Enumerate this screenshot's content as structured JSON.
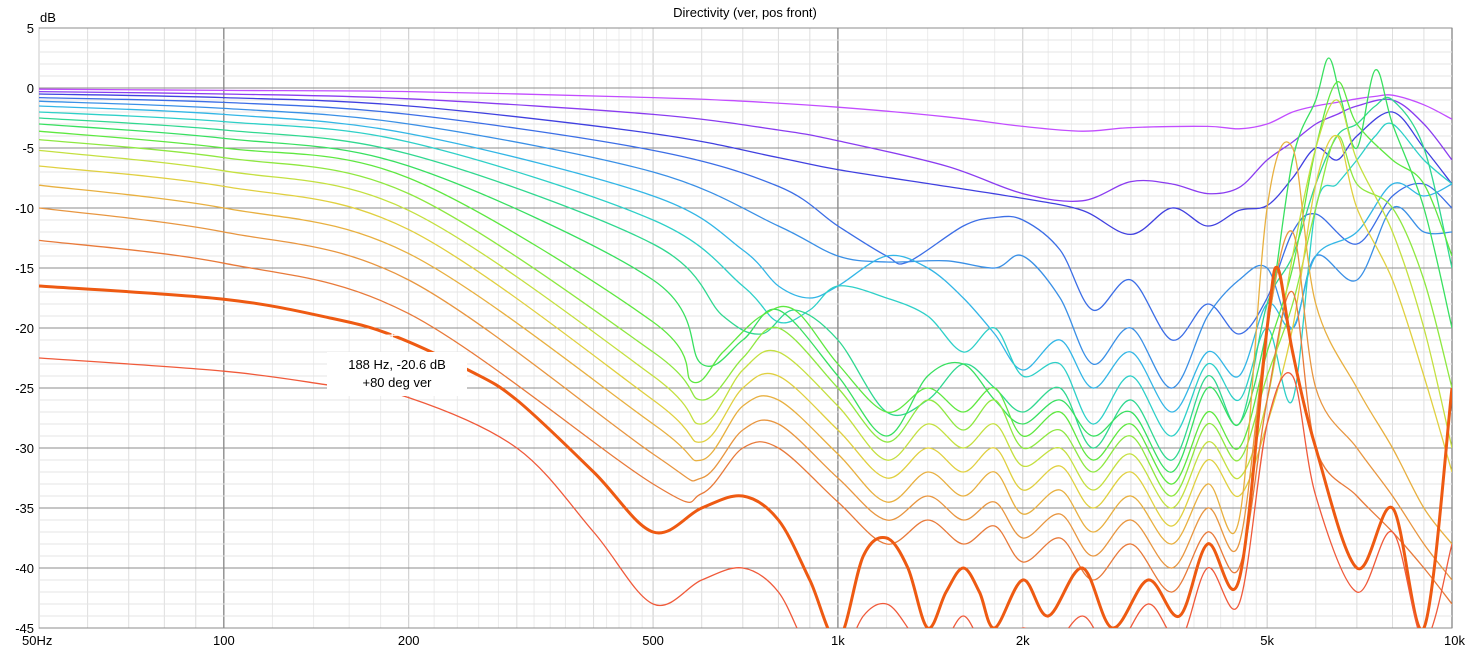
{
  "chart_data": {
    "type": "line",
    "title": "Directivity (ver, pos front)",
    "ylabel": "dB",
    "xlabel": "",
    "x_scale": "log",
    "xlim": [
      50,
      10000
    ],
    "ylim": [
      -45,
      5
    ],
    "x_ticks": [
      {
        "value": 50,
        "label": "50Hz"
      },
      {
        "value": 100,
        "label": "100"
      },
      {
        "value": 200,
        "label": "200"
      },
      {
        "value": 500,
        "label": "500"
      },
      {
        "value": 1000,
        "label": "1k"
      },
      {
        "value": 2000,
        "label": "2k"
      },
      {
        "value": 5000,
        "label": "5k"
      },
      {
        "value": 10000,
        "label": "10k"
      }
    ],
    "y_ticks": [
      {
        "value": 5,
        "label": "5"
      },
      {
        "value": 0,
        "label": "0"
      },
      {
        "value": -5,
        "label": "-5"
      },
      {
        "value": -10,
        "label": "-10"
      },
      {
        "value": -15,
        "label": "-15"
      },
      {
        "value": -20,
        "label": "-20"
      },
      {
        "value": -25,
        "label": "-25"
      },
      {
        "value": -30,
        "label": "-30"
      },
      {
        "value": -35,
        "label": "-35"
      },
      {
        "value": -40,
        "label": "-40"
      },
      {
        "value": -45,
        "label": "-45"
      }
    ],
    "grid": true,
    "legend": "none",
    "cursor": {
      "x": 188,
      "y": -20.6,
      "line1": "188 Hz, -20.6 dB",
      "line2": "+80 deg ver"
    },
    "series": [
      {
        "color": "#c24dff",
        "width": 1.3,
        "x": [
          50,
          100,
          200,
          500,
          700,
          1000,
          1500,
          2000,
          2500,
          3000,
          4000,
          4500,
          5000,
          5500,
          6000,
          6500,
          7000,
          7500,
          8000,
          9000,
          10000
        ],
        "y": [
          -0.1,
          -0.2,
          -0.3,
          -0.8,
          -1.1,
          -1.6,
          -2.4,
          -3.2,
          -3.6,
          -3.3,
          -3.2,
          -3.4,
          -3.0,
          -2.0,
          -1.5,
          -1.2,
          -0.9,
          -0.7,
          -0.6,
          -1.4,
          -2.6
        ]
      },
      {
        "color": "#8a3cf0",
        "width": 1.3,
        "x": [
          50,
          100,
          200,
          500,
          800,
          1000,
          1500,
          2000,
          2500,
          3000,
          3500,
          4000,
          4500,
          5000,
          5500,
          6000,
          6500,
          7000,
          8000,
          9000,
          10000
        ],
        "y": [
          -0.3,
          -0.5,
          -0.9,
          -2.2,
          -3.5,
          -4.4,
          -6.5,
          -8.8,
          -9.4,
          -7.8,
          -8.0,
          -8.8,
          -8.3,
          -6.0,
          -4.5,
          -3.0,
          -2.2,
          -1.5,
          -1.0,
          -3.0,
          -6.0
        ]
      },
      {
        "color": "#4040e0",
        "width": 1.3,
        "x": [
          50,
          100,
          200,
          500,
          800,
          1000,
          1500,
          2000,
          2500,
          3000,
          3500,
          4000,
          4500,
          5000,
          5500,
          6000,
          6500,
          7000,
          8000,
          9000,
          10000
        ],
        "y": [
          -0.5,
          -0.8,
          -1.5,
          -3.8,
          -5.8,
          -6.8,
          -8.2,
          -9.2,
          -10.2,
          -12.2,
          -10.0,
          -11.5,
          -10.2,
          -9.8,
          -7.5,
          -5.0,
          -6.0,
          -4.0,
          -2.0,
          -5.0,
          -8.0
        ]
      },
      {
        "color": "#3c6ee6",
        "width": 1.3,
        "x": [
          50,
          100,
          200,
          500,
          800,
          1000,
          1200,
          1300,
          1600,
          1800,
          2000,
          2300,
          2600,
          3000,
          3500,
          4000,
          4500,
          5000,
          5500,
          6000,
          7000,
          8000,
          9000,
          10000
        ],
        "y": [
          -0.8,
          -1.2,
          -2.2,
          -5.2,
          -8.2,
          -11.5,
          -14.0,
          -14.5,
          -11.5,
          -10.8,
          -11.0,
          -13.5,
          -18.5,
          -16.0,
          -21.0,
          -18.0,
          -20.5,
          -17.5,
          -12.0,
          -10.5,
          -13.0,
          -9.0,
          -8.0,
          -10.0
        ]
      },
      {
        "color": "#3a90e6",
        "width": 1.3,
        "x": [
          50,
          100,
          200,
          500,
          800,
          1000,
          1200,
          1500,
          1800,
          2000,
          2300,
          2600,
          3000,
          3500,
          4000,
          4500,
          5000,
          5500,
          6000,
          7000,
          8000,
          9000,
          10000
        ],
        "y": [
          -1.1,
          -1.7,
          -3.0,
          -7.0,
          -11.5,
          -14.0,
          -14.5,
          -14.4,
          -15.0,
          -14.0,
          -17.5,
          -23.0,
          -20.0,
          -25.0,
          -19.0,
          -16.0,
          -15.0,
          -20.0,
          -14.0,
          -16.0,
          -10.0,
          -12.0,
          -12.0
        ]
      },
      {
        "color": "#33b6e6",
        "width": 1.3,
        "x": [
          50,
          100,
          200,
          500,
          700,
          800,
          900,
          1000,
          1200,
          1400,
          1600,
          1800,
          2000,
          2300,
          2600,
          3000,
          3500,
          4000,
          4500,
          5000,
          5500,
          6000,
          7000,
          8000,
          9000,
          10000
        ],
        "y": [
          -1.5,
          -2.2,
          -3.8,
          -9.0,
          -13.5,
          -16.5,
          -17.5,
          -16.5,
          -14.0,
          -15.0,
          -17.5,
          -20.5,
          -23.5,
          -21.0,
          -25.0,
          -22.0,
          -27.0,
          -22.0,
          -24.0,
          -18.0,
          -20.0,
          -14.0,
          -12.0,
          -8.0,
          -9.0,
          -8.0
        ]
      },
      {
        "color": "#2ed0c8",
        "width": 1.3,
        "x": [
          50,
          100,
          200,
          500,
          700,
          800,
          900,
          1000,
          1200,
          1400,
          1600,
          1800,
          2000,
          2300,
          2600,
          3000,
          3500,
          4000,
          4500,
          5000,
          5500,
          6000,
          6500,
          7000,
          7500,
          8000,
          9000,
          10000
        ],
        "y": [
          -2.0,
          -2.8,
          -4.5,
          -11.0,
          -16.5,
          -19.5,
          -18.5,
          -16.5,
          -17.5,
          -19.0,
          -22.0,
          -20.0,
          -24.0,
          -23.0,
          -28.0,
          -24.0,
          -29.0,
          -23.0,
          -26.0,
          -20.0,
          -26.0,
          -10.0,
          -8.0,
          -6.0,
          -4.0,
          -3.0,
          -6.0,
          -8.0
        ]
      },
      {
        "color": "#30d890",
        "width": 1.3,
        "x": [
          50,
          100,
          200,
          500,
          650,
          750,
          850,
          1000,
          1200,
          1400,
          1600,
          1800,
          2000,
          2300,
          2600,
          3000,
          3500,
          4000,
          4500,
          5000,
          5500,
          6000,
          6500,
          7000,
          7500,
          8000,
          9000,
          10000
        ],
        "y": [
          -2.5,
          -3.5,
          -5.5,
          -13.0,
          -19.0,
          -20.5,
          -18.5,
          -21.0,
          -27.0,
          -26.0,
          -23.0,
          -25.0,
          -27.0,
          -25.0,
          -30.0,
          -26.0,
          -31.0,
          -24.0,
          -28.0,
          -18.0,
          -14.0,
          -8.0,
          -4.0,
          -3.0,
          -1.5,
          -1.0,
          -5.0,
          -15.0
        ]
      },
      {
        "color": "#38e060",
        "width": 1.3,
        "x": [
          50,
          100,
          200,
          500,
          600,
          700,
          800,
          1000,
          1200,
          1400,
          1600,
          1800,
          2000,
          2300,
          2600,
          3000,
          3500,
          4000,
          4500,
          5000,
          5500,
          6000,
          6300,
          6600,
          7000,
          7500,
          8000,
          9000,
          10000
        ],
        "y": [
          -3.0,
          -4.2,
          -6.5,
          -16.0,
          -23.0,
          -21.0,
          -18.5,
          -24.0,
          -29.0,
          -24.0,
          -23.0,
          -26.0,
          -28.0,
          -26.0,
          -29.0,
          -27.0,
          -32.0,
          -25.0,
          -28.0,
          -20.0,
          -6.0,
          -1.0,
          2.5,
          -1.0,
          -5.0,
          1.5,
          -3.0,
          -10.0,
          -20.0
        ]
      },
      {
        "color": "#5ee840",
        "width": 1.3,
        "x": [
          50,
          100,
          200,
          500,
          580,
          650,
          750,
          850,
          1000,
          1200,
          1400,
          1600,
          1800,
          2000,
          2300,
          2600,
          3000,
          3500,
          4000,
          4500,
          5000,
          5500,
          6000,
          6500,
          7000,
          8000,
          9000,
          10000
        ],
        "y": [
          -3.6,
          -5.0,
          -7.5,
          -19.5,
          -24.5,
          -22.0,
          -19.0,
          -18.5,
          -23.0,
          -27.0,
          -25.0,
          -27.0,
          -25.0,
          -29.0,
          -27.0,
          -31.0,
          -28.0,
          -33.0,
          -27.0,
          -30.0,
          -22.0,
          -15.0,
          -5.0,
          0.5,
          -3.0,
          -6.0,
          -8.0,
          -14.0
        ]
      },
      {
        "color": "#8ee840",
        "width": 1.3,
        "x": [
          50,
          100,
          200,
          500,
          600,
          700,
          800,
          1000,
          1200,
          1400,
          1600,
          1800,
          2000,
          2300,
          2600,
          3000,
          3500,
          4000,
          4500,
          5000,
          5500,
          6000,
          6500,
          7000,
          8000,
          9000,
          10000
        ],
        "y": [
          -4.3,
          -5.8,
          -8.8,
          -22.0,
          -26.0,
          -22.5,
          -20.0,
          -25.0,
          -29.5,
          -26.0,
          -28.5,
          -26.0,
          -30.0,
          -28.5,
          -32.0,
          -29.0,
          -34.0,
          -28.0,
          -31.0,
          -24.0,
          -18.0,
          -10.0,
          -4.0,
          -8.0,
          -10.0,
          -16.0,
          -25.0
        ]
      },
      {
        "color": "#c4e040",
        "width": 1.3,
        "x": [
          50,
          100,
          200,
          500,
          600,
          700,
          800,
          1000,
          1200,
          1400,
          1600,
          1800,
          2000,
          2300,
          2600,
          3000,
          3500,
          4000,
          4500,
          5000,
          5500,
          6000,
          6500,
          7000,
          8000,
          9000,
          10000
        ],
        "y": [
          -5.2,
          -6.9,
          -10.2,
          -24.0,
          -28.0,
          -23.5,
          -22.0,
          -26.5,
          -31.0,
          -28.0,
          -30.0,
          -28.0,
          -31.5,
          -30.0,
          -33.5,
          -30.5,
          -35.0,
          -29.5,
          -32.5,
          -26.0,
          -14.0,
          -5.0,
          -1.0,
          -6.0,
          -12.0,
          -20.0,
          -30.0
        ]
      },
      {
        "color": "#e0d040",
        "width": 1.3,
        "x": [
          50,
          100,
          200,
          500,
          600,
          700,
          800,
          1000,
          1200,
          1400,
          1600,
          1800,
          2000,
          2300,
          2600,
          3000,
          3500,
          4000,
          4500,
          5000,
          5500,
          6000,
          6500,
          7000,
          8000,
          9000,
          10000
        ],
        "y": [
          -6.5,
          -8.2,
          -11.8,
          -26.0,
          -29.5,
          -25.0,
          -24.0,
          -28.5,
          -32.5,
          -30.0,
          -32.0,
          -30.0,
          -33.5,
          -31.5,
          -35.0,
          -32.0,
          -36.5,
          -31.0,
          -34.0,
          -28.0,
          -20.0,
          -8.0,
          -4.0,
          -10.0,
          -16.0,
          -24.0,
          -32.0
        ]
      },
      {
        "color": "#e8b040",
        "width": 1.3,
        "x": [
          50,
          100,
          200,
          500,
          600,
          700,
          800,
          1000,
          1200,
          1400,
          1600,
          1800,
          2000,
          2300,
          2600,
          3000,
          3500,
          4000,
          4500,
          5000,
          5500,
          6000,
          7000,
          8000,
          9000,
          10000
        ],
        "y": [
          -8.1,
          -10.0,
          -13.8,
          -28.0,
          -31.0,
          -26.5,
          -26.0,
          -30.5,
          -34.5,
          -32.0,
          -34.0,
          -32.0,
          -35.5,
          -33.5,
          -37.0,
          -34.0,
          -38.0,
          -33.0,
          -36.0,
          -10.0,
          -5.0,
          -18.0,
          -25.0,
          -30.0,
          -35.0,
          -38.0
        ]
      },
      {
        "color": "#e89640",
        "width": 1.3,
        "x": [
          50,
          100,
          200,
          500,
          600,
          700,
          800,
          1000,
          1200,
          1400,
          1600,
          1800,
          2000,
          2300,
          2600,
          3000,
          3500,
          4000,
          4500,
          5000,
          5500,
          6000,
          7000,
          8000,
          9000,
          10000
        ],
        "y": [
          -10.0,
          -12.0,
          -16.0,
          -30.5,
          -32.5,
          -28.5,
          -28.0,
          -32.5,
          -36.0,
          -34.0,
          -36.0,
          -34.5,
          -37.5,
          -35.5,
          -39.0,
          -36.0,
          -40.0,
          -35.0,
          -38.0,
          -20.0,
          -12.0,
          -25.0,
          -30.0,
          -34.0,
          -38.0,
          -41.0
        ]
      },
      {
        "color": "#e87a3a",
        "width": 1.3,
        "x": [
          50,
          100,
          200,
          500,
          600,
          700,
          800,
          1000,
          1200,
          1400,
          1600,
          1800,
          2000,
          2300,
          2600,
          3000,
          3500,
          4000,
          4500,
          5000,
          5500,
          6000,
          7000,
          8000,
          9000,
          10000
        ],
        "y": [
          -12.7,
          -14.6,
          -18.8,
          -33.0,
          -33.8,
          -30.0,
          -30.0,
          -34.5,
          -38.0,
          -36.0,
          -38.0,
          -36.5,
          -39.5,
          -37.5,
          -41.0,
          -38.0,
          -42.0,
          -37.0,
          -40.0,
          -26.0,
          -17.0,
          -30.0,
          -34.0,
          -37.0,
          -40.0,
          -43.0
        ]
      },
      {
        "color": "#ee5a12",
        "width": 3.0,
        "x": [
          50,
          100,
          150,
          188,
          250,
          300,
          400,
          500,
          600,
          700,
          800,
          900,
          1000,
          1100,
          1200,
          1300,
          1400,
          1500,
          1600,
          1700,
          1800,
          2000,
          2200,
          2500,
          2800,
          3200,
          3600,
          4000,
          4500,
          5000,
          5200,
          5500,
          6000,
          7000,
          8000,
          9000,
          10000
        ],
        "y": [
          -16.5,
          -17.6,
          -19.2,
          -20.6,
          -23.5,
          -26.0,
          -32.0,
          -37.0,
          -35.0,
          -34.0,
          -36.0,
          -41.0,
          -46.0,
          -39.0,
          -37.5,
          -40.0,
          -45.0,
          -42.0,
          -40.0,
          -42.0,
          -45.0,
          -41.0,
          -44.0,
          -40.0,
          -45.0,
          -41.0,
          -44.0,
          -38.0,
          -41.0,
          -20.0,
          -15.0,
          -22.0,
          -30.0,
          -40.0,
          -35.0,
          -45.0,
          -25.0
        ]
      },
      {
        "color": "#f05a3a",
        "width": 1.3,
        "x": [
          50,
          100,
          150,
          200,
          300,
          400,
          500,
          600,
          700,
          800,
          900,
          1000,
          1100,
          1200,
          1300,
          1400,
          1500,
          1600,
          1700,
          1800,
          2000,
          2200,
          2500,
          2800,
          3200,
          3600,
          4000,
          4500,
          5000,
          5500,
          6000,
          7000,
          8000,
          9000,
          10000
        ],
        "y": [
          -22.5,
          -23.6,
          -24.8,
          -25.8,
          -30.0,
          -37.0,
          -43.0,
          -41.0,
          -40.0,
          -42.0,
          -47.0,
          -48.0,
          -44.0,
          -43.0,
          -45.0,
          -48.0,
          -46.0,
          -44.0,
          -46.0,
          -48.0,
          -45.0,
          -47.0,
          -44.0,
          -47.0,
          -43.0,
          -46.0,
          -40.0,
          -43.0,
          -28.0,
          -24.0,
          -34.0,
          -42.0,
          -37.0,
          -46.0,
          -38.0
        ]
      }
    ]
  }
}
